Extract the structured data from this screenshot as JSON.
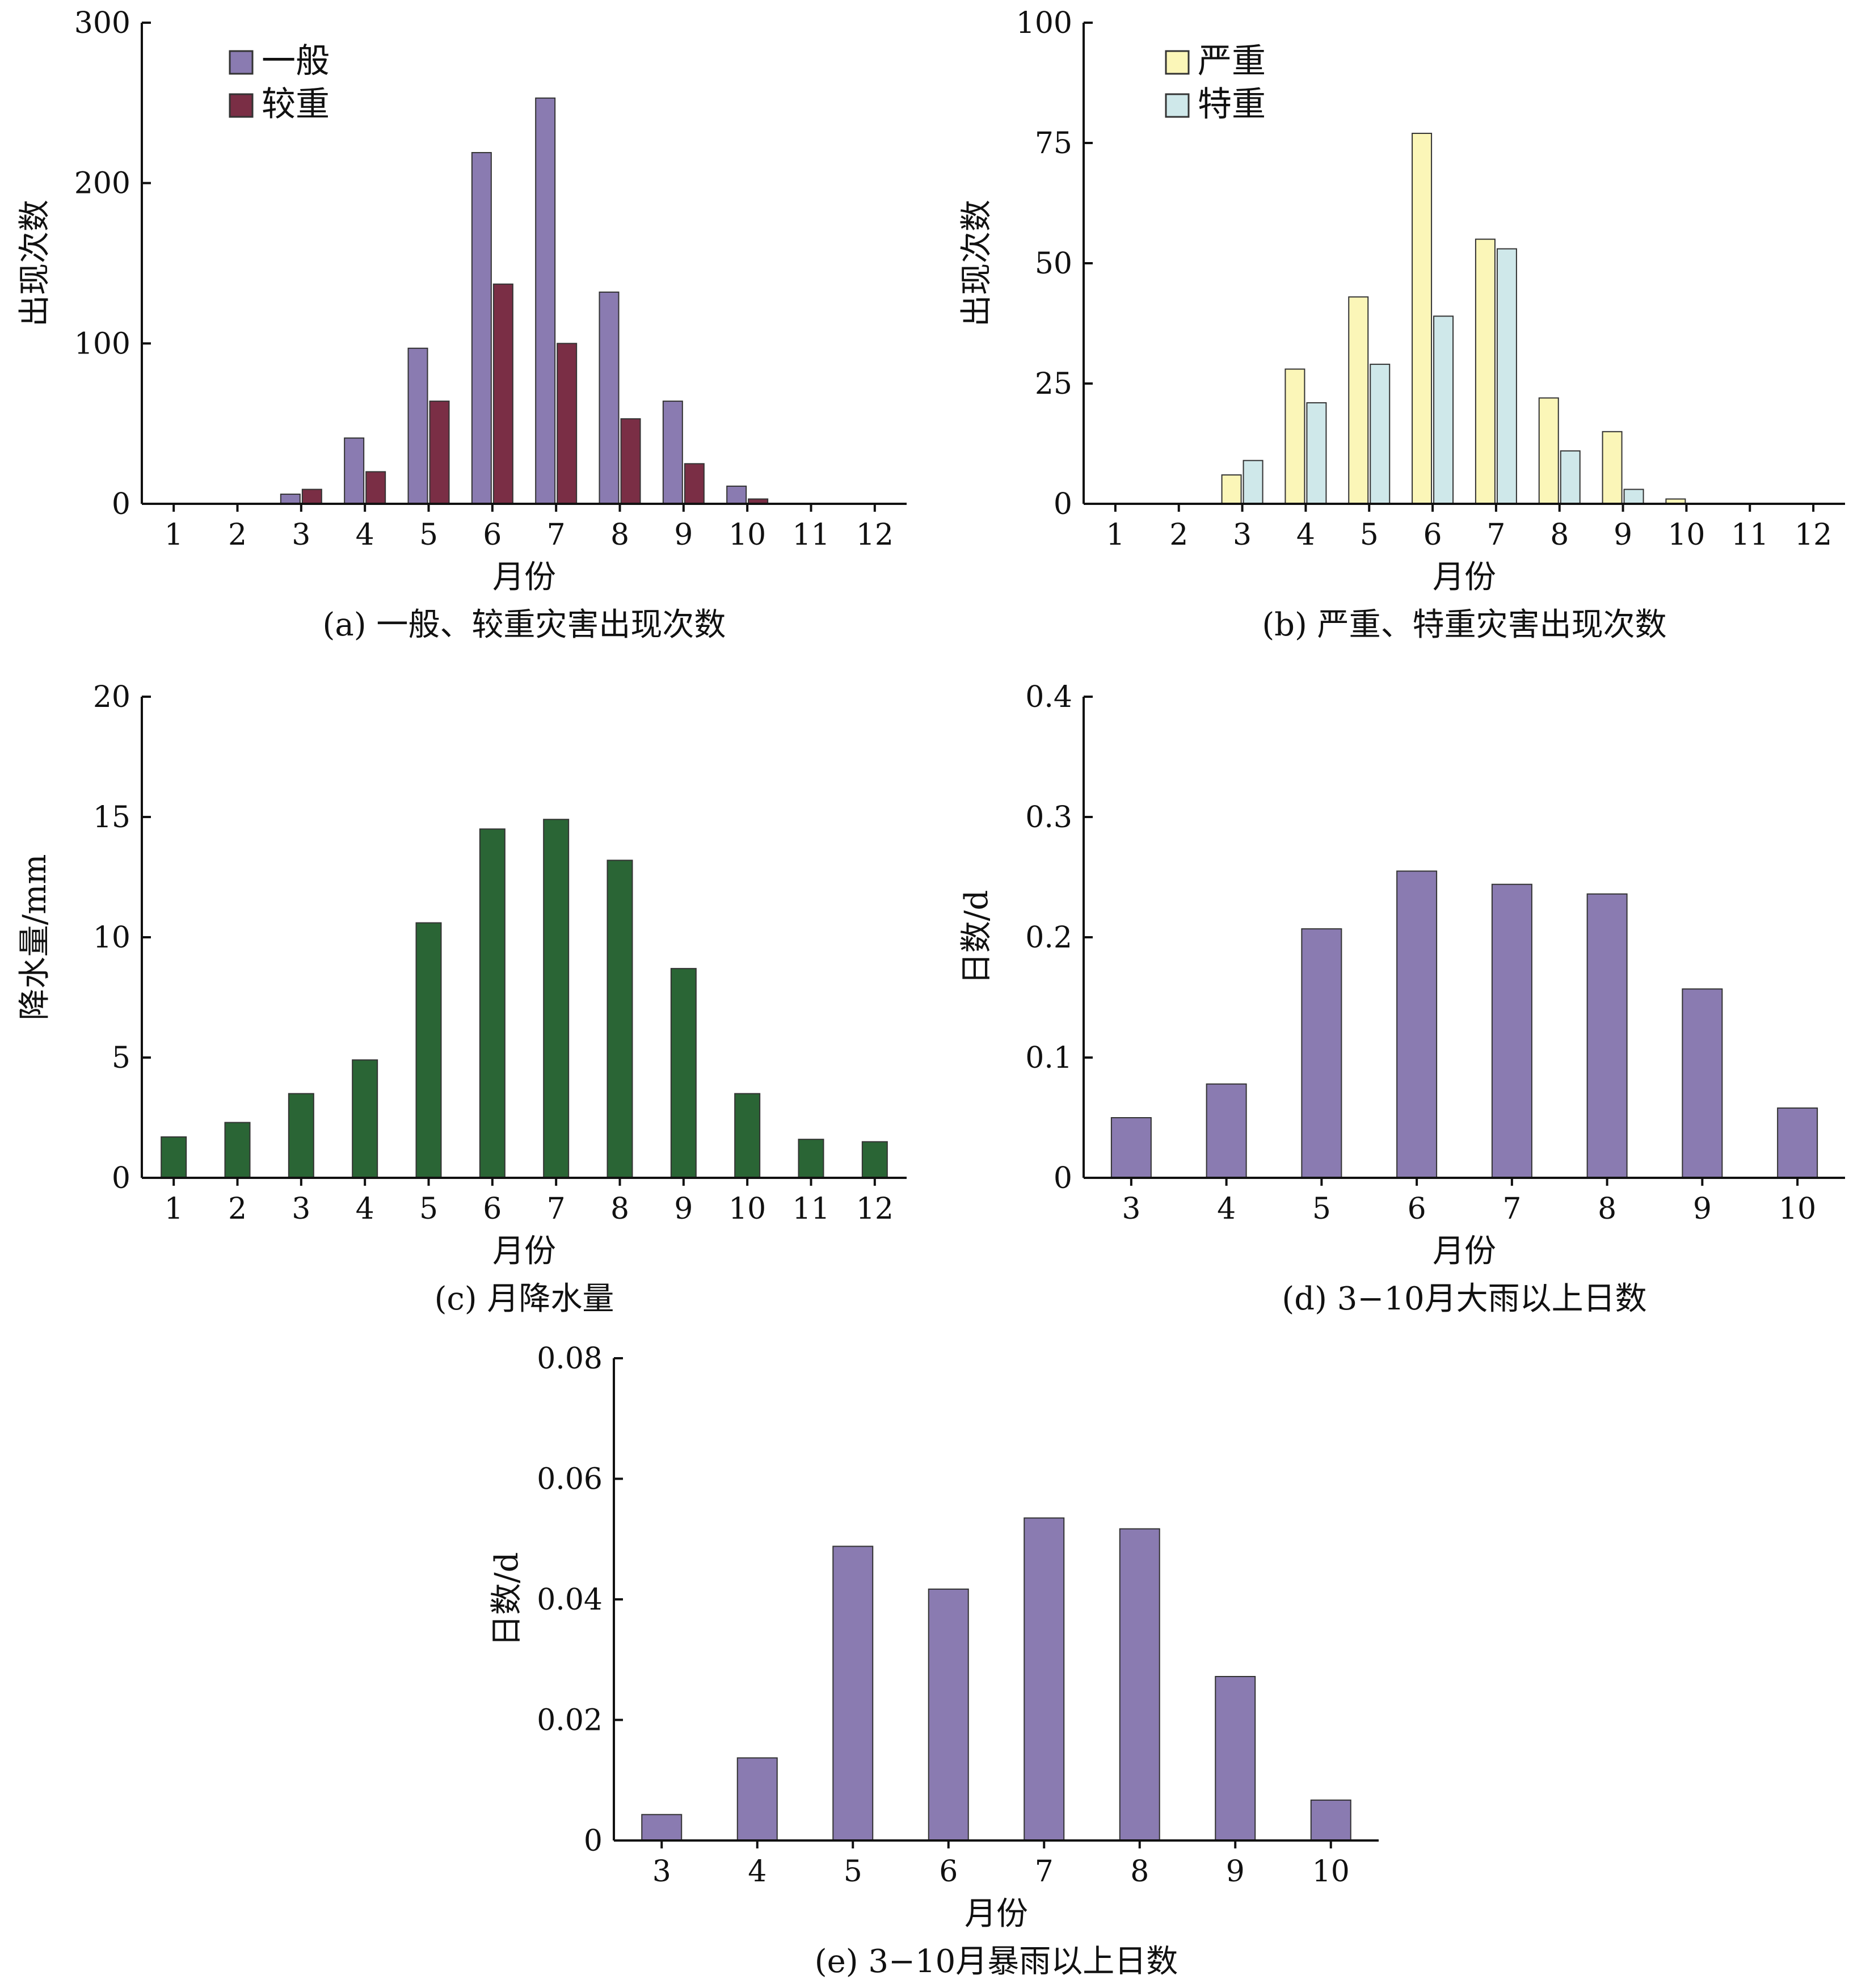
{
  "chart_data": [
    {
      "id": "a",
      "type": "bar",
      "caption": "(a) 一般、较重灾害出现次数",
      "xlabel": "月份",
      "ylabel": "出现次数",
      "categories": [
        "1",
        "2",
        "3",
        "4",
        "5",
        "6",
        "7",
        "8",
        "9",
        "10",
        "11",
        "12"
      ],
      "ylim": [
        0,
        300
      ],
      "yticks": [
        "0",
        "100",
        "200",
        "300"
      ],
      "legend_position": "top-left",
      "series": [
        {
          "name": "一般",
          "color": "#8a7bb1",
          "values": [
            0,
            0,
            6,
            41,
            97,
            219,
            253,
            132,
            64,
            11,
            0,
            0
          ]
        },
        {
          "name": "较重",
          "color": "#7a2e45",
          "values": [
            0,
            0,
            9,
            20,
            64,
            137,
            100,
            53,
            25,
            3,
            0,
            0
          ]
        }
      ]
    },
    {
      "id": "b",
      "type": "bar",
      "caption": "(b) 严重、特重灾害出现次数",
      "xlabel": "月份",
      "ylabel": "出现次数",
      "categories": [
        "1",
        "2",
        "3",
        "4",
        "5",
        "6",
        "7",
        "8",
        "9",
        "10",
        "11",
        "12"
      ],
      "ylim": [
        0,
        100
      ],
      "yticks": [
        "0",
        "25",
        "50",
        "75",
        "100"
      ],
      "legend_position": "top-left",
      "series": [
        {
          "name": "严重",
          "color": "#fbf6b8",
          "values": [
            0,
            0,
            6,
            28,
            43,
            77,
            55,
            22,
            15,
            1,
            0,
            0
          ]
        },
        {
          "name": "特重",
          "color": "#cfe8ea",
          "values": [
            0,
            0,
            9,
            21,
            29,
            39,
            53,
            11,
            3,
            0,
            0,
            0
          ]
        }
      ]
    },
    {
      "id": "c",
      "type": "bar",
      "caption": "(c) 月降水量",
      "xlabel": "月份",
      "ylabel": "降水量/mm",
      "categories": [
        "1",
        "2",
        "3",
        "4",
        "5",
        "6",
        "7",
        "8",
        "9",
        "10",
        "11",
        "12"
      ],
      "ylim": [
        0,
        20
      ],
      "yticks": [
        "0",
        "5",
        "10",
        "15",
        "20"
      ],
      "series": [
        {
          "color": "#2a6535",
          "values": [
            1.7,
            2.3,
            3.5,
            4.9,
            10.6,
            14.5,
            14.9,
            13.2,
            8.7,
            3.5,
            1.6,
            1.5
          ]
        }
      ]
    },
    {
      "id": "d",
      "type": "bar",
      "caption": "(d) 3−10月大雨以上日数",
      "xlabel": "月份",
      "ylabel": "日数/d",
      "categories": [
        "3",
        "4",
        "5",
        "6",
        "7",
        "8",
        "9",
        "10"
      ],
      "ylim": [
        0,
        0.4
      ],
      "yticks": [
        "0",
        "0.1",
        "0.2",
        "0.3",
        "0.4"
      ],
      "series": [
        {
          "color": "#8a7bb1",
          "values": [
            0.05,
            0.078,
            0.207,
            0.255,
            0.244,
            0.236,
            0.157,
            0.058
          ]
        }
      ]
    },
    {
      "id": "e",
      "type": "bar",
      "caption": "(e) 3−10月暴雨以上日数",
      "xlabel": "月份",
      "ylabel": "日数/d",
      "categories": [
        "3",
        "4",
        "5",
        "6",
        "7",
        "8",
        "9",
        "10"
      ],
      "ylim": [
        0,
        0.08
      ],
      "yticks": [
        "0",
        "0.02",
        "0.04",
        "0.06",
        "0.08"
      ],
      "series": [
        {
          "color": "#8a7bb1",
          "values": [
            0.0043,
            0.0137,
            0.0488,
            0.0417,
            0.0535,
            0.0517,
            0.0272,
            0.0067
          ]
        }
      ]
    }
  ]
}
